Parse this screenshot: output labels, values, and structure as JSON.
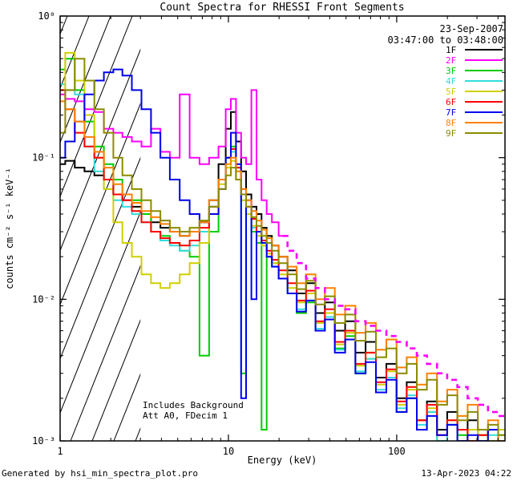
{
  "header": {
    "date": "23-Sep-2007",
    "time_range": "03:47:00 to 03:48:00"
  },
  "footer": {
    "generated_by": "Generated by hsi_min_spectra_plot.pro",
    "datetime": "13-Apr-2023 04:22"
  },
  "chart_data": {
    "type": "line",
    "title": "Count Spectra for RHESSI Front Segments",
    "xlabel": "Energy (keV)",
    "ylabel": "counts cm⁻² s⁻¹ keV⁻¹",
    "xscale": "log",
    "yscale": "log",
    "xlim": [
      1,
      440
    ],
    "ylim": [
      0.001,
      1
    ],
    "step_mode": true,
    "grid": false,
    "legend_position": "top-right",
    "x_ticks": [
      1,
      10,
      100
    ],
    "x_tick_labels": [
      "1",
      "10",
      "100"
    ],
    "y_ticks": [
      1,
      0.1,
      0.01,
      0.001
    ],
    "y_tick_labels": [
      "10⁰",
      "10⁻¹",
      "10⁻²",
      "10⁻³"
    ],
    "hatched_region": {
      "xmin": 1,
      "xmax": 3
    },
    "annotations": [
      "Includes Background",
      "Att A0, FDecim 1"
    ],
    "x_values": [
      1.0,
      1.15,
      1.3,
      1.5,
      1.7,
      1.95,
      2.2,
      2.5,
      2.85,
      3.25,
      3.7,
      4.2,
      4.8,
      5.5,
      6.3,
      7.2,
      8.2,
      9.3,
      10.0,
      10.7,
      11.5,
      12.3,
      13.2,
      14.2,
      15.2,
      16.3,
      17.5,
      18.8,
      21,
      24,
      27,
      31,
      35,
      40,
      46,
      53,
      61,
      70,
      81,
      93,
      107,
      123,
      141,
      162,
      186,
      214,
      246,
      283,
      325,
      374,
      430
    ],
    "series": [
      {
        "label": "1F",
        "color": "#000000",
        "y": [
          0.09,
          0.095,
          0.085,
          0.08,
          0.075,
          0.07,
          0.055,
          0.05,
          0.045,
          0.04,
          0.035,
          0.032,
          0.03,
          0.028,
          0.03,
          0.035,
          0.05,
          0.09,
          0.16,
          0.21,
          0.13,
          0.08,
          0.055,
          0.045,
          0.04,
          0.032,
          0.028,
          0.024,
          0.02,
          0.016,
          0.011,
          0.013,
          0.008,
          0.0095,
          0.006,
          0.007,
          0.0042,
          0.005,
          0.0028,
          0.0035,
          0.002,
          0.0026,
          0.0014,
          0.0019,
          0.0012,
          0.0016,
          0.001,
          0.0014,
          0.0011,
          0.0012,
          0.001
        ]
      },
      {
        "label": "2F",
        "color": "#FF00FF",
        "dash_from": 21,
        "y": [
          0.28,
          0.26,
          0.25,
          0.22,
          0.21,
          0.16,
          0.15,
          0.14,
          0.13,
          0.12,
          0.16,
          0.11,
          0.1,
          0.28,
          0.1,
          0.09,
          0.1,
          0.12,
          0.22,
          0.26,
          0.15,
          0.1,
          0.09,
          0.3,
          0.07,
          0.05,
          0.04,
          0.035,
          0.028,
          0.022,
          0.018,
          0.014,
          0.012,
          0.01,
          0.009,
          0.0085,
          0.007,
          0.0065,
          0.006,
          0.0055,
          0.005,
          0.0045,
          0.004,
          0.0035,
          0.003,
          0.0027,
          0.0024,
          0.002,
          0.0018,
          0.0016,
          0.0015
        ]
      },
      {
        "label": "3F",
        "color": "#00CC00",
        "y": [
          0.42,
          0.5,
          0.3,
          0.18,
          0.12,
          0.09,
          0.07,
          0.055,
          0.05,
          0.04,
          0.03,
          0.028,
          0.025,
          0.022,
          0.02,
          0.004,
          0.03,
          0.06,
          0.1,
          0.12,
          0.07,
          0.003,
          0.04,
          0.03,
          0.025,
          0.0012,
          0.02,
          0.018,
          0.014,
          0.011,
          0.008,
          0.0095,
          0.006,
          0.0072,
          0.0045,
          0.0055,
          0.003,
          0.0038,
          0.0022,
          0.0028,
          0.0016,
          0.002,
          0.0012,
          0.0016,
          0.001,
          0.0013,
          0.0011,
          0.001,
          0.0012,
          0.001,
          0.0011
        ]
      },
      {
        "label": "4F",
        "color": "#33DDDD",
        "y": [
          0.33,
          0.3,
          0.28,
          0.12,
          0.08,
          0.06,
          0.05,
          0.045,
          0.04,
          0.035,
          0.03,
          0.026,
          0.024,
          0.022,
          0.024,
          0.03,
          0.045,
          0.07,
          0.1,
          0.11,
          0.08,
          0.05,
          0.04,
          0.032,
          0.028,
          0.024,
          0.02,
          0.017,
          0.014,
          0.011,
          0.0085,
          0.0098,
          0.0062,
          0.0075,
          0.0044,
          0.0052,
          0.0031,
          0.0038,
          0.0023,
          0.0028,
          0.0017,
          0.0021,
          0.0013,
          0.0016,
          0.001,
          0.0013,
          0.001,
          0.0012,
          0.001,
          0.0011,
          0.001
        ]
      },
      {
        "label": "5F",
        "color": "#CFCF00",
        "y": [
          0.3,
          0.55,
          0.35,
          0.2,
          0.1,
          0.06,
          0.035,
          0.025,
          0.02,
          0.015,
          0.013,
          0.012,
          0.013,
          0.015,
          0.018,
          0.025,
          0.04,
          0.065,
          0.085,
          0.095,
          0.07,
          0.05,
          0.04,
          0.033,
          0.028,
          0.024,
          0.021,
          0.018,
          0.015,
          0.012,
          0.0095,
          0.011,
          0.0068,
          0.008,
          0.0048,
          0.0058,
          0.0034,
          0.0042,
          0.0025,
          0.0031,
          0.0018,
          0.0023,
          0.0014,
          0.0017,
          0.0011,
          0.0014,
          0.001,
          0.0012,
          0.0011,
          0.001,
          0.0012
        ]
      },
      {
        "label": "6F",
        "color": "#FF0000",
        "y": [
          0.3,
          0.22,
          0.15,
          0.12,
          0.1,
          0.07,
          0.055,
          0.05,
          0.042,
          0.035,
          0.03,
          0.027,
          0.025,
          0.024,
          0.026,
          0.032,
          0.045,
          0.07,
          0.1,
          0.115,
          0.085,
          0.06,
          0.045,
          0.037,
          0.03,
          0.026,
          0.022,
          0.019,
          0.016,
          0.013,
          0.0098,
          0.0115,
          0.007,
          0.0085,
          0.005,
          0.006,
          0.0035,
          0.0042,
          0.0026,
          0.0032,
          0.0019,
          0.0024,
          0.0014,
          0.0018,
          0.0011,
          0.0014,
          0.0012,
          0.001,
          0.0011,
          0.0012,
          0.001
        ]
      },
      {
        "label": "7F",
        "color": "#0000EE",
        "y": [
          0.1,
          0.13,
          0.18,
          0.28,
          0.35,
          0.4,
          0.42,
          0.38,
          0.3,
          0.22,
          0.15,
          0.1,
          0.07,
          0.05,
          0.04,
          0.035,
          0.04,
          0.06,
          0.1,
          0.15,
          0.09,
          0.002,
          0.05,
          0.01,
          0.03,
          0.025,
          0.02,
          0.017,
          0.014,
          0.011,
          0.0082,
          0.0098,
          0.006,
          0.0072,
          0.0042,
          0.0052,
          0.003,
          0.0036,
          0.0022,
          0.0027,
          0.0016,
          0.002,
          0.0012,
          0.0015,
          0.0011,
          0.0013,
          0.001,
          0.0011,
          0.001,
          0.0012,
          0.001
        ]
      },
      {
        "label": "8F",
        "color": "#FF8000",
        "y": [
          0.25,
          0.22,
          0.18,
          0.14,
          0.11,
          0.085,
          0.065,
          0.055,
          0.048,
          0.042,
          0.038,
          0.034,
          0.03,
          0.028,
          0.03,
          0.035,
          0.05,
          0.07,
          0.09,
          0.1,
          0.08,
          0.06,
          0.05,
          0.042,
          0.036,
          0.031,
          0.027,
          0.024,
          0.02,
          0.017,
          0.013,
          0.015,
          0.01,
          0.012,
          0.0078,
          0.009,
          0.0058,
          0.0068,
          0.0044,
          0.0052,
          0.0033,
          0.0039,
          0.0025,
          0.003,
          0.0019,
          0.0023,
          0.0015,
          0.0018,
          0.0012,
          0.0014,
          0.001
        ]
      },
      {
        "label": "9F",
        "color": "#8B8B00",
        "y": [
          0.15,
          0.3,
          0.5,
          0.35,
          0.22,
          0.15,
          0.1,
          0.075,
          0.06,
          0.05,
          0.042,
          0.036,
          0.032,
          0.03,
          0.032,
          0.036,
          0.045,
          0.06,
          0.075,
          0.085,
          0.07,
          0.055,
          0.045,
          0.038,
          0.033,
          0.028,
          0.025,
          0.022,
          0.018,
          0.015,
          0.0118,
          0.0135,
          0.0092,
          0.0105,
          0.0068,
          0.0078,
          0.0051,
          0.0059,
          0.0039,
          0.0045,
          0.003,
          0.0035,
          0.0023,
          0.0027,
          0.0018,
          0.0021,
          0.0014,
          0.0016,
          0.0012,
          0.0013,
          0.0011
        ]
      }
    ]
  }
}
